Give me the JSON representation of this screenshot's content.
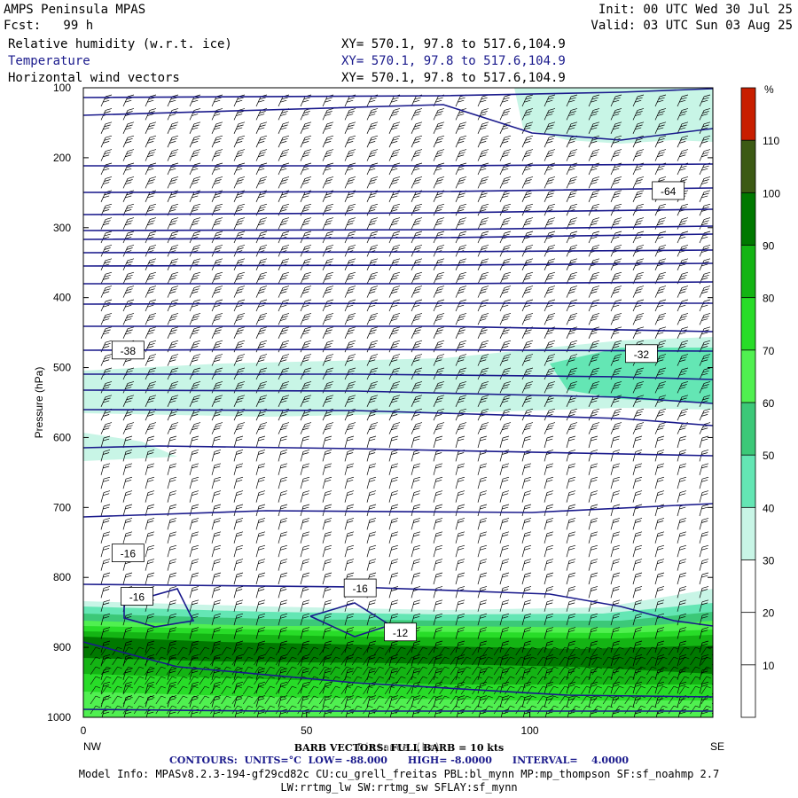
{
  "header": {
    "model": "AMPS Peninsula MPAS",
    "fcst": "Fcst:   99 h",
    "init": "Init: 00 UTC Wed 30 Jul 25",
    "valid": "Valid: 03 UTC Sun 03 Aug 25",
    "fields": [
      {
        "label": "Relative humidity (w.r.t. ice)",
        "xy": "XY= 570.1, 97.8 to 517.6,104.9"
      },
      {
        "label": "Temperature",
        "xy": "XY= 570.1, 97.8 to 517.6,104.9"
      },
      {
        "label": "Horizontal wind vectors",
        "xy": "XY= 570.1, 97.8 to 517.6,104.9"
      }
    ]
  },
  "footer": {
    "barb": "BARB VECTORS: FULL BARB = 10 kts",
    "xlabel_overlap": "Distance (km)",
    "contours": "CONTOURS:  UNITS=°C  LOW= -88.000      HIGH= -8.0000      INTERVAL=    4.0000",
    "model_info": "Model Info: MPASv8.2.3-194-gf29cd82c CU:cu_grell_freitas PBL:bl_mynn MP:mp_thompson SF:sf_noahmp 2.7",
    "model_info2": "LW:rrtmg_lw SW:rrtmg_sw SFLAY:sf_mynn"
  },
  "colors": {
    "contour": "#1a1a8c",
    "rh_levels": [
      "#ffffff",
      "#ffffff",
      "#ffffff",
      "#c8f5e6",
      "#64e6b4",
      "#3cc878",
      "#50f050",
      "#28dc28",
      "#14b414",
      "#007800",
      "#3c5a14",
      "#c81e00"
    ]
  },
  "chart_data": {
    "type": "cross-section",
    "title": "Relative humidity (w.r.t. ice) / Temperature / Horizontal wind vectors",
    "ylabel": "Pressure (hPa)",
    "xlabel": "",
    "x_left_label": "NW",
    "x_right_label": "SE",
    "xlim": [
      0,
      141
    ],
    "ylim": [
      1000,
      100
    ],
    "x_ticks": [
      0,
      50,
      100
    ],
    "y_ticks": [
      100,
      200,
      300,
      400,
      500,
      600,
      700,
      800,
      900,
      1000
    ],
    "colorbar": {
      "unit": "%",
      "ticks": [
        10,
        20,
        30,
        40,
        50,
        60,
        70,
        80,
        90,
        100,
        110
      ]
    },
    "contour_labels": [
      {
        "x": 131,
        "p": 247,
        "text": "-64"
      },
      {
        "x": 10,
        "p": 475,
        "text": "-38"
      },
      {
        "x": 125,
        "p": 480,
        "text": "-32"
      },
      {
        "x": 10,
        "p": 765,
        "text": "-16"
      },
      {
        "x": 12,
        "p": 827,
        "text": "-16"
      },
      {
        "x": 62,
        "p": 815,
        "text": "-16"
      },
      {
        "x": 71,
        "p": 878,
        "text": "-12"
      }
    ]
  }
}
